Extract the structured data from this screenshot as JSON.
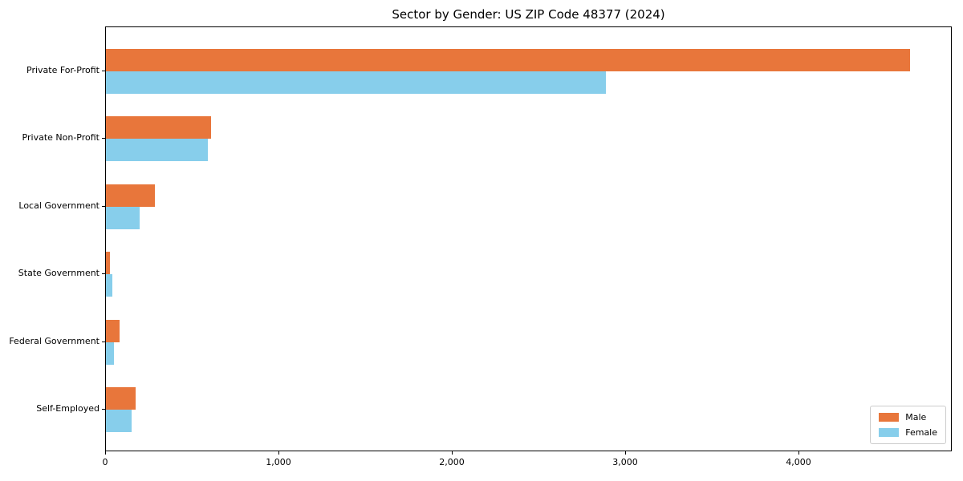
{
  "title": "Sector by Gender: US ZIP Code 48377 (2024)",
  "colors": {
    "male": "#E8763B",
    "female": "#87CEEB",
    "axis": "#000000",
    "background": "#FFFFFF",
    "legend_border": "#CCCCCC"
  },
  "chart_data": {
    "type": "bar",
    "orientation": "horizontal",
    "title": "Sector by Gender: US ZIP Code 48377 (2024)",
    "categories": [
      "Private For-Profit",
      "Private Non-Profit",
      "Local Government",
      "State Government",
      "Federal Government",
      "Self-Employed"
    ],
    "series": [
      {
        "name": "Male",
        "color": "#E8763B",
        "values": [
          4640,
          605,
          280,
          25,
          80,
          170
        ]
      },
      {
        "name": "Female",
        "color": "#87CEEB",
        "values": [
          2885,
          590,
          195,
          35,
          45,
          150
        ]
      }
    ],
    "xlabel": "",
    "ylabel": "",
    "xlim": [
      0,
      4884
    ],
    "x_ticks": [
      0,
      1000,
      2000,
      3000,
      4000
    ],
    "x_tick_labels": [
      "0",
      "1,000",
      "2,000",
      "3,000",
      "4,000"
    ],
    "grid": false,
    "legend_position": "lower right"
  }
}
